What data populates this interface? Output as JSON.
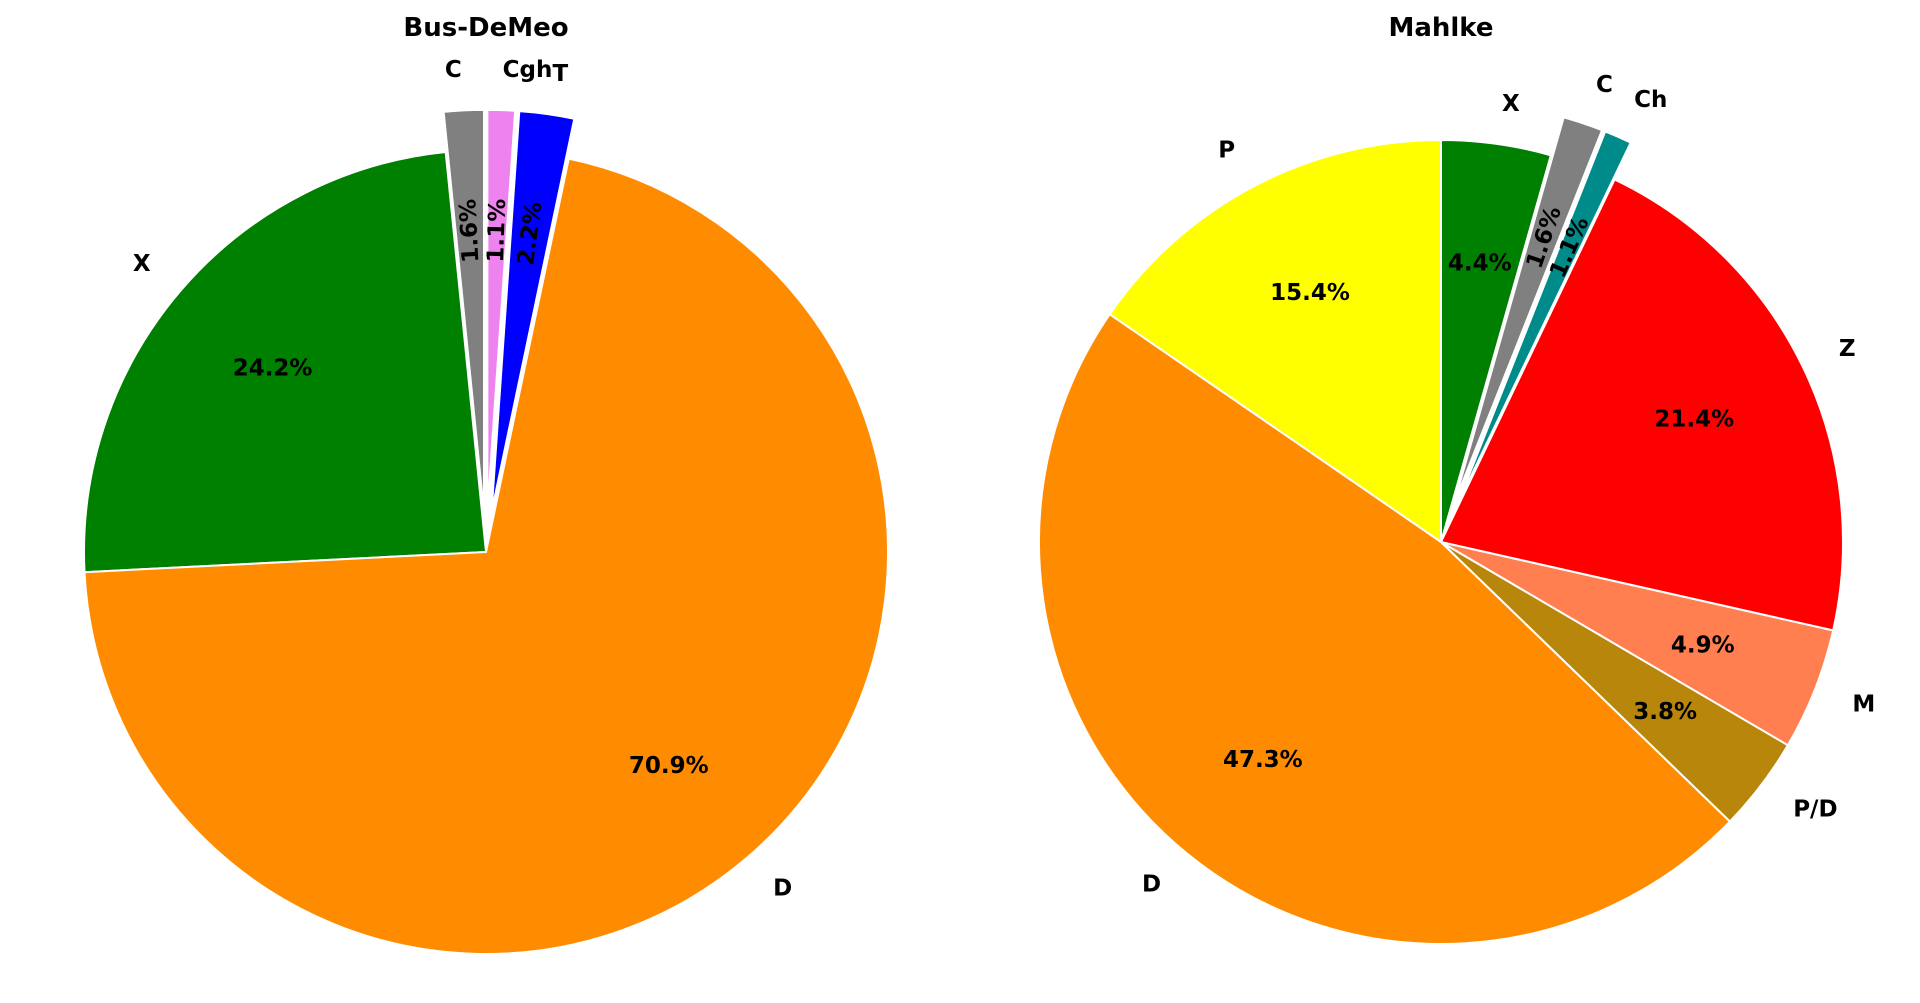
{
  "chart_data": [
    {
      "type": "pie",
      "title": "Bus-DeMeo",
      "slices": [
        {
          "label": "C",
          "value": 1.6,
          "pct_label": "1.6%",
          "color": "#808080",
          "exploded": true
        },
        {
          "label": "X",
          "value": 24.2,
          "pct_label": "24.2%",
          "color": "#008000",
          "exploded": false
        },
        {
          "label": "D",
          "value": 70.9,
          "pct_label": "70.9%",
          "color": "#ff8c00",
          "exploded": false
        },
        {
          "label": "T",
          "value": 2.2,
          "pct_label": "2.2%",
          "color": "#0000ff",
          "exploded": true
        },
        {
          "label": "Cgh",
          "value": 1.1,
          "pct_label": "1.1%",
          "color": "#ee82ee",
          "exploded": true
        }
      ]
    },
    {
      "type": "pie",
      "title": "Mahlke",
      "slices": [
        {
          "label": "P",
          "value": 15.4,
          "pct_label": "15.4%",
          "color": "#ffff00",
          "exploded": false
        },
        {
          "label": "D",
          "value": 47.3,
          "pct_label": "47.3%",
          "color": "#ff8c00",
          "exploded": false
        },
        {
          "label": "P/D",
          "value": 3.8,
          "pct_label": "3.8%",
          "color": "#b8860b",
          "exploded": false
        },
        {
          "label": "M",
          "value": 4.9,
          "pct_label": "4.9%",
          "color": "#ff7f50",
          "exploded": false
        },
        {
          "label": "Z",
          "value": 21.4,
          "pct_label": "21.4%",
          "color": "#ff0000",
          "exploded": false
        },
        {
          "label": "Ch",
          "value": 1.1,
          "pct_label": "1.1%",
          "color": "#008b8b",
          "exploded": true
        },
        {
          "label": "C",
          "value": 1.6,
          "pct_label": "1.6%",
          "color": "#808080",
          "exploded": true
        },
        {
          "label": "X",
          "value": 4.4,
          "pct_label": "4.4%",
          "color": "#008000",
          "exploded": false
        }
      ]
    }
  ]
}
